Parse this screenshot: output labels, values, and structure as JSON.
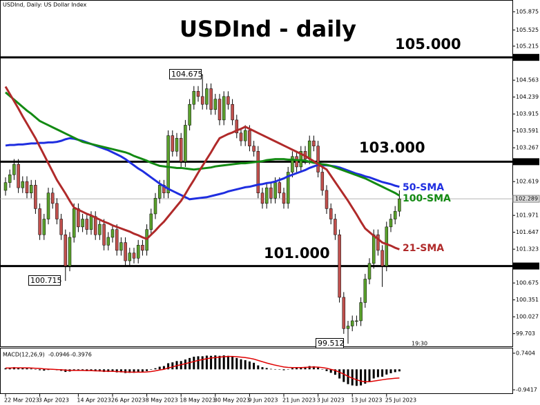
{
  "chart_data": {
    "type": "candlestick",
    "title": "USDInd - daily",
    "subtitle": "USDInd, Daily: US Dollar Index",
    "up_color": "#5aa02c",
    "down_color": "#c0504d",
    "categories": [
      "22 Mar 2023",
      null,
      null,
      null,
      null,
      null,
      null,
      null,
      "3 Apr 2023",
      null,
      null,
      null,
      null,
      null,
      null,
      null,
      null,
      "14 Apr 2023",
      null,
      null,
      null,
      null,
      null,
      null,
      null,
      "26 Apr 2023",
      null,
      null,
      null,
      null,
      null,
      null,
      null,
      "8 May 2023",
      null,
      null,
      null,
      null,
      null,
      null,
      null,
      "18 May 2023",
      null,
      null,
      null,
      null,
      null,
      null,
      null,
      "30 May 2023",
      null,
      null,
      null,
      null,
      null,
      null,
      null,
      "9 Jun 2023",
      null,
      null,
      null,
      null,
      null,
      null,
      null,
      "21 Jun 2023",
      null,
      null,
      null,
      null,
      null,
      null,
      null,
      "3 Jul 2023",
      null,
      null,
      null,
      null,
      null,
      null,
      null,
      "13 Jul 2023",
      null,
      null,
      null,
      null,
      null,
      null,
      null,
      "25 Jul 2023",
      null,
      null,
      null
    ],
    "open": [
      102.45,
      102.6,
      102.75,
      102.95,
      102.5,
      102.62,
      102.4,
      102.55,
      102.1,
      101.6,
      101.9,
      102.4,
      102.2,
      101.9,
      101.6,
      101.0,
      101.55,
      102.1,
      101.75,
      101.9,
      101.7,
      101.95,
      101.6,
      101.8,
      101.4,
      101.55,
      101.7,
      101.3,
      101.45,
      101.1,
      101.25,
      101.15,
      101.4,
      101.3,
      101.7,
      102.0,
      102.3,
      102.55,
      102.4,
      103.5,
      103.2,
      103.45,
      103.0,
      103.7,
      104.1,
      104.35,
      104.25,
      104.1,
      104.4,
      104.0,
      104.2,
      103.8,
      104.25,
      104.1,
      103.8,
      103.55,
      103.4,
      103.6,
      103.3,
      103.2,
      102.4,
      102.2,
      102.5,
      102.3,
      102.6,
      102.4,
      102.2,
      102.8,
      103.1,
      102.9,
      103.2,
      103.05,
      103.4,
      103.3,
      102.8,
      102.45,
      102.1,
      101.9,
      101.6,
      100.4,
      99.8,
      99.85,
      99.95,
      99.95,
      100.3,
      100.75,
      101.05,
      101.6,
      101.3,
      101.0,
      101.75,
      101.9,
      102.05
    ],
    "high": [
      102.7,
      102.85,
      103.05,
      103.05,
      102.72,
      102.72,
      102.65,
      102.65,
      102.2,
      102.0,
      102.5,
      102.5,
      102.3,
      102.0,
      101.7,
      101.65,
      102.2,
      102.2,
      102.0,
      102.0,
      102.05,
      102.05,
      101.9,
      101.9,
      101.65,
      101.8,
      101.8,
      101.55,
      101.55,
      101.35,
      101.35,
      101.5,
      101.5,
      101.8,
      102.1,
      102.4,
      102.65,
      102.65,
      103.6,
      103.6,
      103.55,
      103.55,
      103.8,
      104.2,
      104.45,
      104.45,
      104.675,
      104.5,
      104.5,
      104.3,
      104.3,
      104.35,
      104.35,
      104.2,
      103.9,
      103.65,
      103.7,
      103.7,
      103.4,
      103.3,
      102.5,
      102.6,
      102.6,
      102.7,
      102.7,
      102.5,
      102.9,
      103.2,
      103.2,
      103.3,
      103.3,
      103.5,
      103.5,
      103.4,
      102.9,
      102.55,
      102.2,
      102.0,
      101.7,
      100.5,
      99.95,
      100.05,
      100.05,
      100.4,
      100.85,
      101.15,
      101.7,
      101.7,
      101.4,
      101.85,
      102.0,
      102.15,
      102.45
    ],
    "low": [
      102.35,
      102.5,
      102.65,
      102.4,
      102.4,
      102.3,
      102.3,
      102.0,
      101.5,
      101.5,
      101.8,
      102.1,
      101.8,
      101.5,
      100.715,
      100.9,
      101.45,
      101.65,
      101.65,
      101.6,
      101.6,
      101.5,
      101.5,
      101.3,
      101.3,
      101.45,
      101.2,
      101.2,
      101.0,
      101.0,
      101.05,
      101.05,
      101.2,
      101.2,
      101.6,
      101.9,
      102.2,
      102.3,
      102.3,
      103.1,
      103.1,
      102.9,
      102.9,
      103.6,
      104.0,
      104.15,
      104.0,
      104.0,
      103.9,
      103.9,
      103.7,
      103.7,
      104.0,
      103.7,
      103.45,
      103.3,
      103.3,
      103.2,
      103.1,
      102.3,
      102.1,
      102.1,
      102.2,
      102.2,
      102.3,
      102.1,
      102.1,
      102.7,
      102.8,
      102.8,
      102.95,
      102.95,
      103.2,
      102.7,
      102.35,
      102.0,
      101.8,
      101.5,
      100.3,
      99.7,
      99.512,
      99.75,
      99.85,
      99.85,
      100.2,
      100.65,
      100.95,
      101.2,
      100.6,
      100.9,
      101.65,
      101.8,
      101.95
    ],
    "close": [
      102.6,
      102.75,
      102.95,
      102.5,
      102.62,
      102.4,
      102.55,
      102.1,
      101.6,
      101.9,
      102.4,
      102.2,
      101.9,
      101.6,
      101.0,
      101.55,
      102.1,
      101.75,
      101.9,
      101.7,
      101.95,
      101.6,
      101.8,
      101.4,
      101.55,
      101.7,
      101.3,
      101.45,
      101.1,
      101.25,
      101.15,
      101.4,
      101.3,
      101.7,
      102.0,
      102.3,
      102.55,
      102.4,
      103.5,
      103.2,
      103.45,
      103.0,
      103.7,
      104.1,
      104.35,
      104.25,
      104.1,
      104.4,
      104.0,
      104.2,
      103.8,
      104.25,
      104.1,
      103.8,
      103.55,
      103.4,
      103.6,
      103.3,
      103.2,
      102.4,
      102.2,
      102.5,
      102.3,
      102.6,
      102.4,
      102.2,
      102.8,
      103.1,
      102.9,
      103.2,
      103.05,
      103.4,
      103.3,
      102.8,
      102.45,
      102.1,
      101.9,
      101.6,
      100.4,
      99.8,
      99.85,
      99.95,
      99.95,
      100.3,
      100.75,
      101.05,
      101.6,
      101.3,
      101.0,
      101.75,
      101.9,
      102.05,
      102.289
    ],
    "series": [
      {
        "name": "50-SMA",
        "color": "#1f2ee0",
        "values": [
          103.31,
          103.32,
          103.32,
          103.33,
          103.33,
          103.34,
          103.35,
          103.35,
          103.36,
          103.36,
          103.37,
          103.37,
          103.38,
          103.4,
          103.43,
          103.45,
          103.44,
          103.42,
          103.4,
          103.37,
          103.34,
          103.31,
          103.28,
          103.25,
          103.22,
          103.18,
          103.14,
          103.1,
          103.05,
          102.99,
          102.93,
          102.87,
          102.82,
          102.76,
          102.7,
          102.64,
          102.58,
          102.53,
          102.48,
          102.44,
          102.4,
          102.36,
          102.32,
          102.28,
          102.29,
          102.3,
          102.31,
          102.32,
          102.34,
          102.36,
          102.38,
          102.4,
          102.43,
          102.45,
          102.47,
          102.49,
          102.51,
          102.52,
          102.54,
          102.56,
          102.57,
          102.59,
          102.6,
          102.62,
          102.65,
          102.68,
          102.72,
          102.75,
          102.78,
          102.81,
          102.84,
          102.88,
          102.91,
          102.94,
          102.93,
          102.93,
          102.92,
          102.91,
          102.89,
          102.86,
          102.83,
          102.8,
          102.77,
          102.75,
          102.72,
          102.7,
          102.67,
          102.64,
          102.61,
          102.59,
          102.57,
          102.54,
          102.52
        ]
      },
      {
        "name": "100-SMA",
        "color": "#138a13",
        "values": [
          104.33,
          104.26,
          104.19,
          104.12,
          104.05,
          103.98,
          103.92,
          103.85,
          103.78,
          103.74,
          103.7,
          103.66,
          103.62,
          103.58,
          103.54,
          103.5,
          103.46,
          103.42,
          103.38,
          103.36,
          103.34,
          103.32,
          103.3,
          103.28,
          103.26,
          103.24,
          103.22,
          103.2,
          103.18,
          103.15,
          103.11,
          103.08,
          103.05,
          103.02,
          102.98,
          102.95,
          102.92,
          102.91,
          102.9,
          102.89,
          102.88,
          102.88,
          102.87,
          102.86,
          102.85,
          102.86,
          102.87,
          102.88,
          102.89,
          102.91,
          102.92,
          102.93,
          102.94,
          102.95,
          102.96,
          102.97,
          102.97,
          102.98,
          102.99,
          103.0,
          103.01,
          103.03,
          103.04,
          103.05,
          103.05,
          103.05,
          103.04,
          103.04,
          103.03,
          103.03,
          103.02,
          103.0,
          102.98,
          102.97,
          102.95,
          102.94,
          102.92,
          102.89,
          102.86,
          102.83,
          102.8,
          102.77,
          102.74,
          102.71,
          102.68,
          102.64,
          102.6,
          102.56,
          102.52,
          102.48,
          102.44,
          102.4,
          102.35
        ]
      },
      {
        "name": "21-SMA",
        "color": "#b02a2a",
        "values": [
          104.44,
          104.3,
          104.16,
          104.02,
          103.87,
          103.73,
          103.59,
          103.45,
          103.29,
          103.13,
          102.97,
          102.81,
          102.65,
          102.52,
          102.39,
          102.25,
          102.12,
          102.08,
          102.04,
          102.0,
          101.97,
          101.93,
          101.89,
          101.85,
          101.82,
          101.78,
          101.75,
          101.72,
          101.69,
          101.66,
          101.62,
          101.59,
          101.55,
          101.52,
          101.6,
          101.68,
          101.77,
          101.85,
          101.95,
          102.05,
          102.15,
          102.25,
          102.38,
          102.52,
          102.65,
          102.79,
          102.92,
          103.05,
          103.18,
          103.32,
          103.45,
          103.49,
          103.53,
          103.56,
          103.6,
          103.63,
          103.67,
          103.63,
          103.59,
          103.55,
          103.51,
          103.47,
          103.43,
          103.39,
          103.35,
          103.31,
          103.27,
          103.23,
          103.19,
          103.15,
          103.11,
          103.06,
          103.01,
          102.95,
          102.9,
          102.85,
          102.73,
          102.61,
          102.49,
          102.37,
          102.25,
          102.12,
          101.99,
          101.85,
          101.72,
          101.65,
          101.58,
          101.52,
          101.45,
          101.42,
          101.39,
          101.35,
          101.32
        ]
      }
    ],
    "levels": [
      {
        "value": 105,
        "label": "105.000"
      },
      {
        "value": 103,
        "label": "103.000"
      },
      {
        "value": 101,
        "label": "101.000"
      }
    ],
    "ylim": [
      99.46,
      106.1
    ],
    "yticks": [
      105.875,
      105.525,
      105.215,
      104.563,
      104.239,
      103.915,
      103.591,
      103.267,
      102.619,
      101.971,
      101.647,
      101.323,
      100.675,
      100.351,
      100.027,
      99.703
    ],
    "countdown": "19:30",
    "macd": {
      "name": "MACD(12,26,9)",
      "ylim": [
        -1.1,
        0.96
      ],
      "yticks": [
        0.7404,
        -0.9417
      ],
      "histogram_color": "#000000",
      "signal_color": "#e00000",
      "histogram": [
        0.05,
        0.08,
        0.1,
        0.08,
        0.06,
        0.05,
        0.03,
        0.0,
        -0.04,
        -0.06,
        -0.03,
        -0.02,
        -0.04,
        -0.07,
        -0.12,
        -0.1,
        -0.05,
        -0.06,
        -0.06,
        -0.08,
        -0.07,
        -0.09,
        -0.1,
        -0.12,
        -0.12,
        -0.11,
        -0.14,
        -0.14,
        -0.17,
        -0.16,
        -0.16,
        -0.13,
        -0.12,
        -0.08,
        -0.02,
        0.05,
        0.12,
        0.15,
        0.28,
        0.32,
        0.38,
        0.38,
        0.45,
        0.52,
        0.58,
        0.6,
        0.6,
        0.63,
        0.62,
        0.64,
        0.62,
        0.64,
        0.62,
        0.58,
        0.52,
        0.46,
        0.42,
        0.36,
        0.3,
        0.18,
        0.1,
        0.06,
        0.02,
        0.01,
        -0.01,
        -0.04,
        0.0,
        0.05,
        0.06,
        0.1,
        0.11,
        0.15,
        0.14,
        0.08,
        0.01,
        -0.08,
        -0.16,
        -0.25,
        -0.42,
        -0.58,
        -0.68,
        -0.74,
        -0.76,
        -0.74,
        -0.66,
        -0.56,
        -0.42,
        -0.36,
        -0.34,
        -0.24,
        -0.18,
        -0.13,
        -0.0946
      ],
      "signal": [
        0.06,
        0.06,
        0.07,
        0.07,
        0.07,
        0.07,
        0.06,
        0.05,
        0.04,
        0.02,
        0.01,
        0.0,
        -0.01,
        -0.02,
        -0.04,
        -0.05,
        -0.05,
        -0.05,
        -0.05,
        -0.06,
        -0.06,
        -0.07,
        -0.07,
        -0.08,
        -0.09,
        -0.09,
        -0.1,
        -0.11,
        -0.12,
        -0.13,
        -0.13,
        -0.13,
        -0.13,
        -0.12,
        -0.1,
        -0.07,
        -0.03,
        0.0,
        0.06,
        0.11,
        0.17,
        0.21,
        0.26,
        0.31,
        0.36,
        0.41,
        0.45,
        0.49,
        0.52,
        0.54,
        0.56,
        0.58,
        0.59,
        0.59,
        0.58,
        0.56,
        0.54,
        0.51,
        0.47,
        0.41,
        0.35,
        0.29,
        0.24,
        0.19,
        0.15,
        0.11,
        0.09,
        0.08,
        0.08,
        0.08,
        0.09,
        0.1,
        0.11,
        0.1,
        0.08,
        0.05,
        0.0,
        -0.05,
        -0.13,
        -0.22,
        -0.32,
        -0.41,
        -0.48,
        -0.54,
        -0.57,
        -0.57,
        -0.54,
        -0.51,
        -0.48,
        -0.45,
        -0.43,
        -0.41,
        -0.3976
      ]
    }
  }
}
